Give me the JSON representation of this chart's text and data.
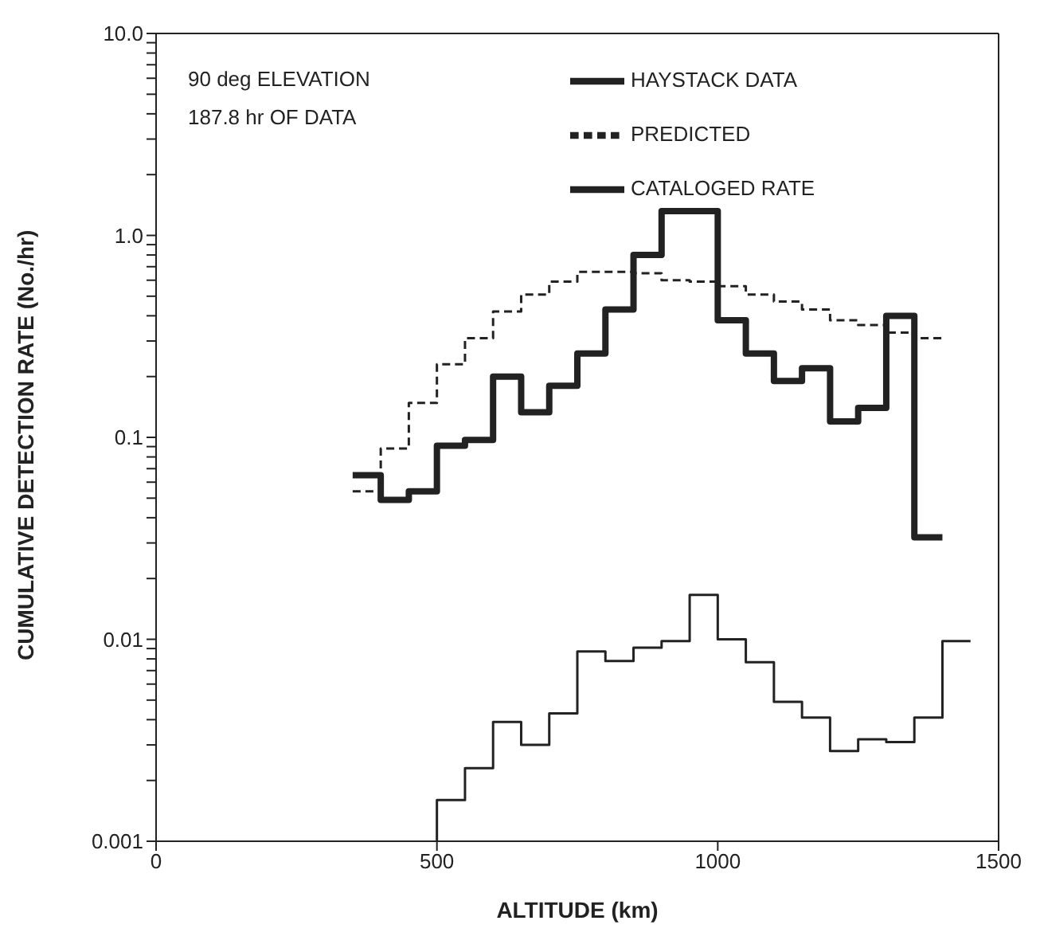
{
  "chart_data": {
    "type": "step",
    "xlabel": "ALTITUDE (km)",
    "ylabel": "CUMULATIVE DETECTION RATE (No./hr)",
    "annotations": [
      "90 deg ELEVATION",
      "187.8 hr OF DATA"
    ],
    "series": [
      {
        "name": "HAYSTACK DATA",
        "color": "#222222",
        "line_style": "solid",
        "x": [
          350,
          400,
          450,
          500,
          550,
          600,
          650,
          700,
          750,
          800,
          850,
          900,
          950,
          1000,
          1050,
          1100,
          1150,
          1200,
          1250,
          1300,
          1350,
          1400
        ],
        "values": [
          0.065,
          0.049,
          0.054,
          0.091,
          0.097,
          0.2,
          0.133,
          0.18,
          0.26,
          0.43,
          0.8,
          1.32,
          1.32,
          0.38,
          0.26,
          0.19,
          0.22,
          0.12,
          0.14,
          0.4,
          0.032,
          0.032
        ]
      },
      {
        "name": "PREDICTED",
        "color": "#222222",
        "line_style": "dashed",
        "x": [
          350,
          400,
          450,
          500,
          550,
          600,
          650,
          700,
          750,
          800,
          850,
          900,
          950,
          1000,
          1050,
          1100,
          1150,
          1200,
          1250,
          1300,
          1350,
          1400
        ],
        "values": [
          0.054,
          0.088,
          0.148,
          0.23,
          0.31,
          0.42,
          0.51,
          0.59,
          0.66,
          0.66,
          0.65,
          0.6,
          0.59,
          0.56,
          0.51,
          0.47,
          0.43,
          0.38,
          0.36,
          0.33,
          0.31,
          0.31
        ]
      },
      {
        "name": "CATALOGED RATE",
        "color": "#222222",
        "line_style": "solid",
        "x": [
          500,
          500,
          550,
          600,
          650,
          700,
          750,
          800,
          850,
          900,
          950,
          1000,
          1050,
          1100,
          1150,
          1200,
          1250,
          1300,
          1350,
          1400,
          1450
        ],
        "values": [
          0.001,
          0.0016,
          0.0023,
          0.0039,
          0.003,
          0.0043,
          0.0087,
          0.0078,
          0.0091,
          0.0098,
          0.0166,
          0.01,
          0.0077,
          0.0049,
          0.0041,
          0.0028,
          0.0032,
          0.0031,
          0.0041,
          0.0098,
          0.0098
        ]
      }
    ],
    "log": "y",
    "xlim": [
      0,
      1500
    ],
    "xticks": [
      0,
      500,
      1000,
      1500
    ],
    "ylim": [
      0.001,
      10
    ],
    "yticks": [
      {
        "value": 0.001,
        "label": "0.001"
      },
      {
        "value": 0.002,
        "label": null
      },
      {
        "value": 0.003,
        "label": null
      },
      {
        "value": 0.004,
        "label": null
      },
      {
        "value": 0.005,
        "label": null
      },
      {
        "value": 0.006,
        "label": null
      },
      {
        "value": 0.007,
        "label": null
      },
      {
        "value": 0.008,
        "label": null
      },
      {
        "value": 0.009,
        "label": null
      },
      {
        "value": 0.01,
        "label": "0.01"
      },
      {
        "value": 0.02,
        "label": null
      },
      {
        "value": 0.03,
        "label": null
      },
      {
        "value": 0.04,
        "label": null
      },
      {
        "value": 0.05,
        "label": null
      },
      {
        "value": 0.06,
        "label": null
      },
      {
        "value": 0.07,
        "label": null
      },
      {
        "value": 0.08,
        "label": null
      },
      {
        "value": 0.09,
        "label": null
      },
      {
        "value": 0.1,
        "label": "0.1"
      },
      {
        "value": 0.2,
        "label": null
      },
      {
        "value": 0.3,
        "label": null
      },
      {
        "value": 0.4,
        "label": null
      },
      {
        "value": 0.5,
        "label": null
      },
      {
        "value": 0.6,
        "label": null
      },
      {
        "value": 0.7,
        "label": null
      },
      {
        "value": 0.8,
        "label": null
      },
      {
        "value": 0.9,
        "label": null
      },
      {
        "value": 1,
        "label": "1.0"
      },
      {
        "value": 2,
        "label": null
      },
      {
        "value": 3,
        "label": null
      },
      {
        "value": 4,
        "label": null
      },
      {
        "value": 5,
        "label": null
      },
      {
        "value": 6,
        "label": null
      },
      {
        "value": 7,
        "label": null
      },
      {
        "value": 8,
        "label": null
      },
      {
        "value": 9,
        "label": null
      },
      {
        "value": 10,
        "label": "10.0"
      }
    ],
    "grid": false,
    "legend": "top right",
    "marker": "none"
  }
}
